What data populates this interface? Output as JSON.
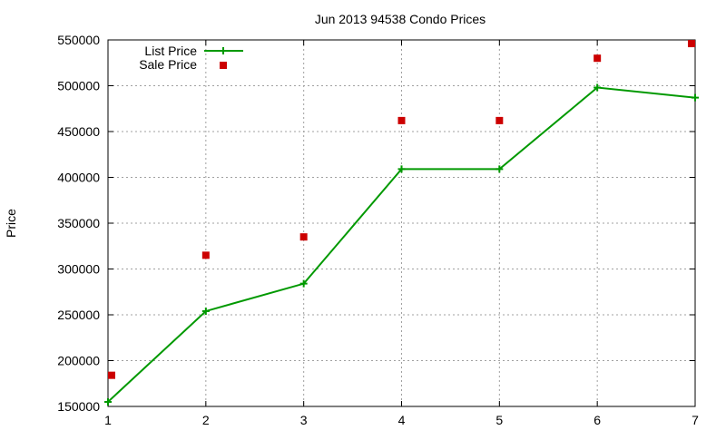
{
  "chart_data": {
    "type": "line",
    "title": "Jun 2013 94538 Condo Prices",
    "xlabel": "",
    "ylabel": "Price",
    "xlim": [
      1,
      7
    ],
    "ylim": [
      150000,
      550000
    ],
    "x_ticks": [
      1,
      2,
      3,
      4,
      5,
      6,
      7
    ],
    "y_ticks": [
      150000,
      200000,
      250000,
      300000,
      350000,
      400000,
      450000,
      500000,
      550000
    ],
    "grid": true,
    "legend_position": "top-left",
    "series": [
      {
        "name": "List Price",
        "style": "line-with-plus-markers",
        "color": "#009900",
        "x": [
          1,
          2,
          3,
          4,
          5,
          6,
          7
        ],
        "values": [
          155000,
          254000,
          284000,
          409000,
          409000,
          498000,
          487000
        ]
      },
      {
        "name": "Sale Price",
        "style": "square-markers",
        "color": "#cc0000",
        "x": [
          1,
          2,
          3,
          4,
          5,
          6,
          7
        ],
        "values": [
          184000,
          315000,
          335000,
          462000,
          462000,
          530000,
          546000
        ]
      }
    ]
  }
}
